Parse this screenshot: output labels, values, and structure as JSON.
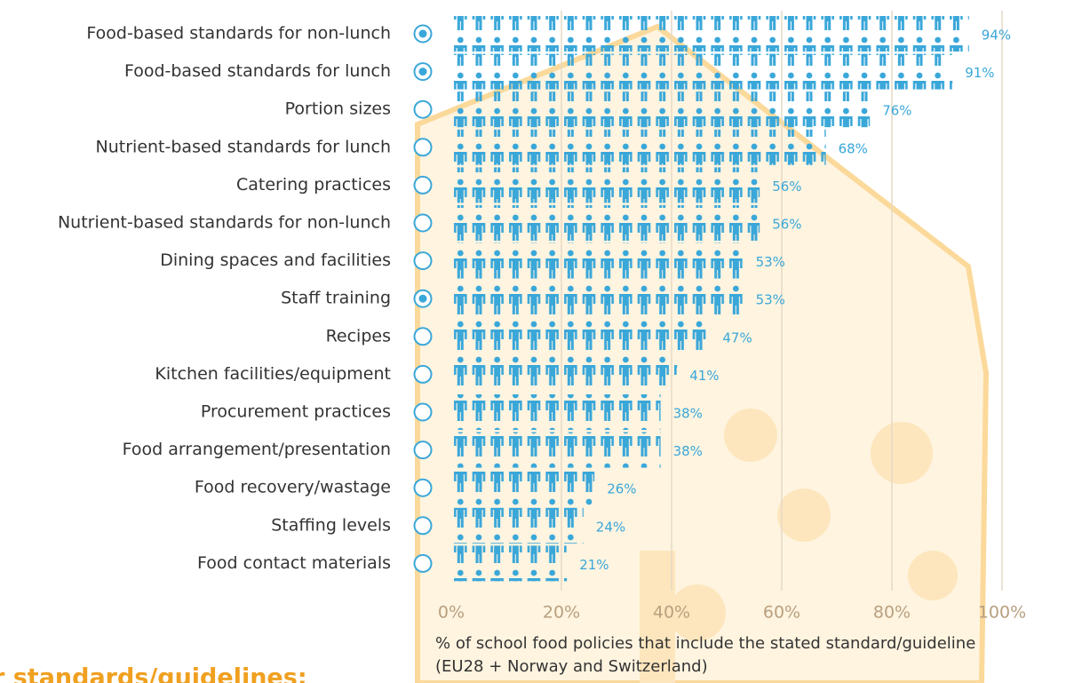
{
  "chart_data": {
    "type": "pictograph",
    "categories": [
      "Food-based standards for non-lunch",
      "Food-based standards for lunch",
      "Portion sizes",
      "Nutrient-based standards for lunch",
      "Catering practices",
      "Nutrient-based standards for non-lunch",
      "Dining spaces and facilities",
      "Staff training",
      "Recipes",
      "Kitchen facilities/equipment",
      "Procurement practices",
      "Food arrangement/presentation",
      "Food recovery/wastage",
      "Staffing levels",
      "Food contact materials"
    ],
    "values": [
      94,
      91,
      76,
      68,
      56,
      56,
      53,
      53,
      47,
      41,
      38,
      38,
      26,
      24,
      21
    ],
    "value_labels": [
      "94%",
      "91%",
      "76%",
      "68%",
      "56%",
      "56%",
      "53%",
      "53%",
      "47%",
      "41%",
      "38%",
      "38%",
      "26%",
      "24%",
      "21%"
    ],
    "selected": [
      true,
      true,
      false,
      false,
      false,
      false,
      false,
      true,
      false,
      false,
      false,
      false,
      false,
      false,
      false
    ],
    "color": "#3aa7d9",
    "xlim": [
      0,
      100
    ],
    "xticks": [
      {
        "value": 0,
        "label": "0%"
      },
      {
        "value": 20,
        "label": "20%"
      },
      {
        "value": 40,
        "label": "40%"
      },
      {
        "value": 60,
        "label": "60%"
      },
      {
        "value": 80,
        "label": "80%"
      },
      {
        "value": 100,
        "label": "100%"
      }
    ],
    "grid": true,
    "xlabel": [
      "% of school food policies that include the stated standard/guideline",
      "(EU28 + Norway and Switzerland)"
    ],
    "footer_text": "r standards/guidelines:"
  }
}
